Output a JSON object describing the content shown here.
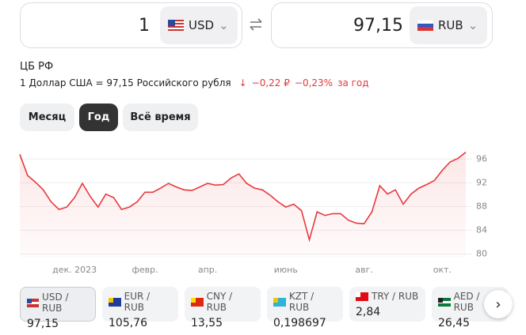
{
  "converter": {
    "from": {
      "amount": "1",
      "currency": "USD"
    },
    "to": {
      "amount": "97,15",
      "currency": "RUB"
    }
  },
  "rate": {
    "source": "ЦБ РФ",
    "text": "1 Доллар США = 97,15 Российского рубля",
    "change": "−0,22 ₽",
    "change_pct": "−0,23%",
    "period": "за год"
  },
  "periods": [
    "Месяц",
    "Год",
    "Всё время"
  ],
  "chart_data": {
    "type": "line",
    "color": "#e8383d",
    "categories": [
      null,
      null,
      null,
      null,
      null,
      null,
      null,
      "дек. 2023",
      null,
      null,
      null,
      null,
      null,
      null,
      null,
      null,
      "февр.",
      null,
      null,
      null,
      null,
      null,
      null,
      null,
      "апр.",
      null,
      null,
      null,
      null,
      null,
      null,
      null,
      null,
      null,
      "июнь",
      null,
      null,
      null,
      null,
      null,
      null,
      null,
      null,
      null,
      "авг.",
      null,
      null,
      null,
      null,
      null,
      null,
      null,
      null,
      null,
      "окт.",
      null,
      null,
      null
    ],
    "values": [
      96.8,
      93.2,
      92.1,
      90.8,
      88.8,
      87.5,
      87.9,
      89.5,
      91.9,
      89.7,
      87.9,
      90.1,
      89.5,
      87.5,
      87.9,
      88.8,
      90.4,
      90.4,
      91.1,
      91.9,
      91.3,
      90.8,
      90.7,
      91.3,
      91.9,
      91.6,
      91.7,
      92.8,
      93.5,
      91.9,
      91.1,
      90.8,
      89.9,
      88.8,
      87.9,
      88.4,
      87.3,
      82.4,
      87.1,
      86.5,
      86.8,
      86.8,
      85.7,
      85.2,
      85.1,
      87.1,
      91.5,
      90.1,
      90.8,
      88.4,
      90.1,
      91.1,
      91.7,
      92.4,
      94.1,
      95.5,
      96.1,
      97.15
    ],
    "ylim": [
      79.4,
      97.5
    ],
    "yticks": [
      80,
      84,
      88,
      92,
      96
    ],
    "grid": true
  },
  "cards": [
    {
      "pair": "USD / RUB",
      "value": "97,15"
    },
    {
      "pair": "EUR / RUB",
      "value": "105,76"
    },
    {
      "pair": "CNY / RUB",
      "value": "13,55"
    },
    {
      "pair": "KZT / RUB",
      "value": "0,198697"
    },
    {
      "pair": "TRY / RUB",
      "value": "2,84"
    },
    {
      "pair": "AED / RUB",
      "value": "26,45"
    }
  ]
}
